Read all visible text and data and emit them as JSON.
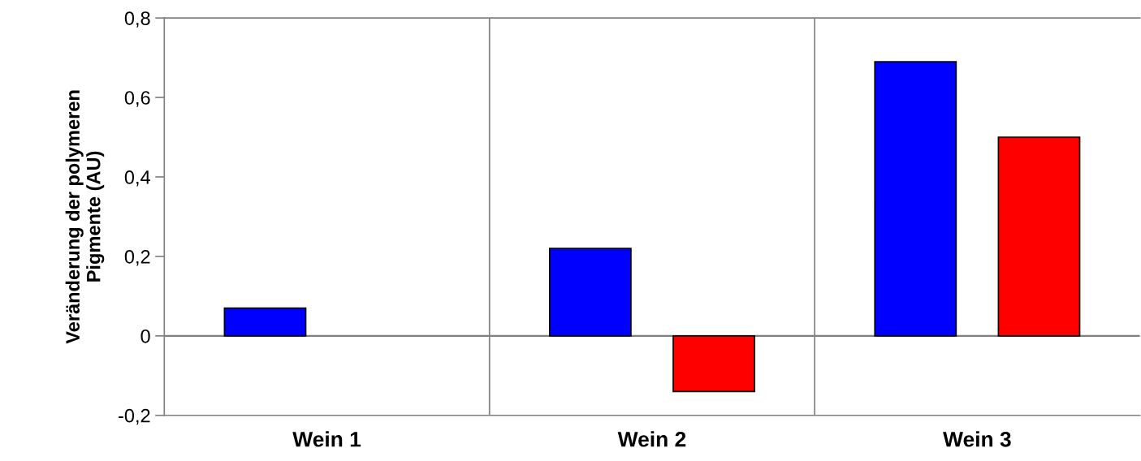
{
  "chart_data": {
    "type": "bar",
    "ylabel": "Veränderung der polymeren\nPigmente (AU)",
    "categories": [
      "Wein 1",
      "Wein 2",
      "Wein 3"
    ],
    "series": [
      {
        "color": "#0000ff",
        "values": [
          0.07,
          0.22,
          0.69
        ]
      },
      {
        "color": "#ff0000",
        "values": [
          null,
          -0.14,
          0.5
        ]
      }
    ],
    "ylim": [
      -0.2,
      0.8
    ],
    "yticks": [
      {
        "value": -0.2,
        "label": "-0,2"
      },
      {
        "value": 0,
        "label": "0"
      },
      {
        "value": 0.2,
        "label": "0,2"
      },
      {
        "value": 0.4,
        "label": "0,4"
      },
      {
        "value": 0.6,
        "label": "0,6"
      },
      {
        "value": 0.8,
        "label": "0,8"
      }
    ],
    "grid": "x",
    "legend": false
  }
}
